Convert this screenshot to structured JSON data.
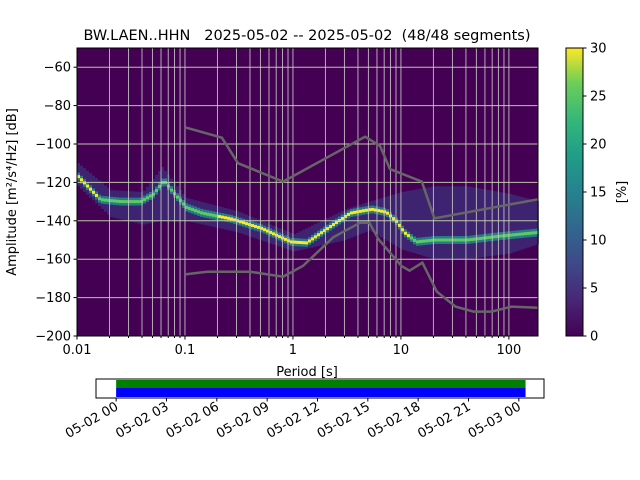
{
  "chart_data": {
    "type": "heatmap",
    "title": "BW.LAEN..HHN   2025-05-02 -- 2025-05-02  (48/48 segments)",
    "xlabel": "Period [s]",
    "ylabel": "Amplitude [m²/s⁴/Hz] [dB]",
    "xscale": "log",
    "xlim": [
      0.01,
      186
    ],
    "ylim": [
      -200,
      -50
    ],
    "xticks": [
      0.01,
      0.1,
      1,
      10,
      100
    ],
    "xtick_labels": [
      "0.01",
      "0.1",
      "1",
      "10",
      "100"
    ],
    "yticks": [
      -60,
      -80,
      -100,
      -120,
      -140,
      -160,
      -180,
      -200
    ],
    "ytick_labels": [
      "−60",
      "−80",
      "−100",
      "−120",
      "−140",
      "−160",
      "−180",
      "−200"
    ],
    "grid": true,
    "colorbar": {
      "label": "[%]",
      "range": [
        0,
        30
      ],
      "ticks": [
        "0",
        "5",
        "10",
        "15",
        "20",
        "25",
        "30"
      ],
      "colormap": "viridis"
    },
    "background_color": "#440154",
    "mode_curve": {
      "period": [
        0.01,
        0.016,
        0.025,
        0.038,
        0.05,
        0.062,
        0.075,
        0.1,
        0.14,
        0.26,
        0.5,
        0.93,
        1.3,
        1.8,
        3.3,
        5.2,
        7.1,
        8.9,
        10.4,
        13.5,
        20,
        40,
        80,
        186
      ],
      "db": [
        -117,
        -129,
        -130,
        -130,
        -126,
        -119,
        -125,
        -133,
        -136,
        -139,
        -144,
        -151,
        -151.5,
        -146,
        -136,
        -134,
        -135.5,
        -140.5,
        -146,
        -151,
        -150,
        -150,
        -148,
        -146
      ]
    },
    "spread": {
      "period": [
        0.01,
        0.02,
        0.04,
        0.06,
        0.1,
        0.3,
        1,
        3,
        5,
        10,
        20,
        40,
        100,
        186
      ],
      "high": [
        -110,
        -124,
        -125,
        -112,
        -128,
        -135,
        -147,
        -134,
        -130,
        -125,
        -122,
        -122,
        -126,
        -130
      ],
      "low": [
        -122,
        -138,
        -142,
        -140,
        -140,
        -146,
        -156,
        -150,
        -145,
        -155,
        -160,
        -160,
        -157,
        -152
      ]
    },
    "nhnm": {
      "period": [
        0.1,
        0.22,
        0.31,
        0.81,
        4.66,
        6.4,
        7.9,
        15.6,
        20.4,
        186
      ],
      "db": [
        -91.3,
        -96.7,
        -110,
        -119.6,
        -96.2,
        -101,
        -113,
        -119.6,
        -138.7,
        -128.8
      ]
    },
    "nlnm": {
      "period": [
        0.1,
        0.16,
        0.4,
        0.81,
        1.24,
        2.36,
        4.2,
        5.1,
        6.2,
        10.1,
        12,
        15.8,
        21.5,
        32,
        47,
        69,
        106,
        186
      ],
      "db": [
        -167.9,
        -166.5,
        -166.5,
        -169.1,
        -163.5,
        -148.6,
        -141,
        -141,
        -149.6,
        -163.5,
        -166,
        -161.8,
        -176.9,
        -184.7,
        -187.3,
        -187.3,
        -184.7,
        -185.3
      ]
    },
    "data_coverage": {
      "tick_labels": [
        "05-02 00",
        "05-02 03",
        "05-02 06",
        "05-02 09",
        "05-02 12",
        "05-02 15",
        "05-02 18",
        "05-02 21",
        "05-03 00"
      ],
      "coverage_start_hour": 0,
      "coverage_end_hour": 24.4,
      "range_hours": [
        -1.2,
        25.5
      ],
      "colors": {
        "used": "#008000",
        "available": "#0000ff"
      }
    }
  }
}
